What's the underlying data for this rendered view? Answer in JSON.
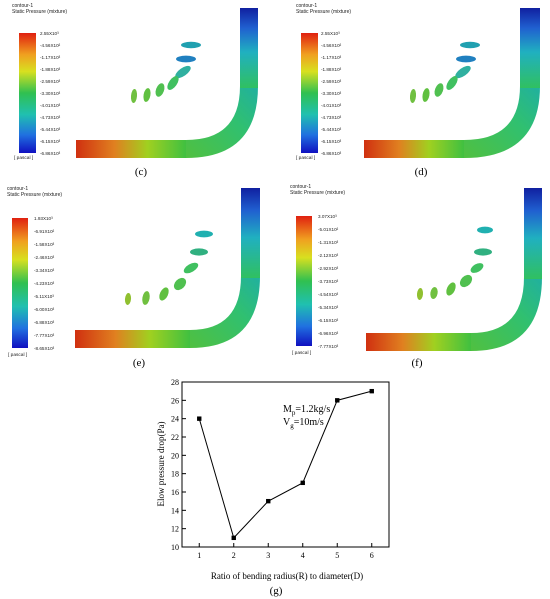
{
  "panels": {
    "c": {
      "title": "contour-1",
      "subtitle": "Static Pressure (mixture)",
      "unit": "[ pascal ]",
      "caption": "(c)",
      "ticks": [
        "2.55X10³",
        "-4.56X10²",
        "-1.17X10³",
        "-1.88X10³",
        "-2.59X10³",
        "-3.30X10³",
        "-4.01X10³",
        "-4.73X10³",
        "-5.44X10³",
        "-6.15X10³",
        "-6.86X10³"
      ]
    },
    "d": {
      "title": "contour-1",
      "subtitle": "Static Pressure (mixture)",
      "unit": "[ pascal ]",
      "caption": "(d)",
      "ticks": [
        "2.55X10³",
        "-4.56X10²",
        "-1.17X10³",
        "-1.88X10³",
        "-2.59X10³",
        "-3.30X10³",
        "-4.01X10³",
        "-4.73X10³",
        "-5.44X10³",
        "-6.15X10³",
        "-6.86X10³"
      ]
    },
    "e": {
      "title": "contour-1",
      "subtitle": "Static Pressure (mixture)",
      "unit": "[ pascal ]",
      "caption": "(e)",
      "ticks": [
        "1.93X10³",
        "-6.91X10²",
        "-1.58X10³",
        "-2.46X10³",
        "-3.34X10³",
        "-4.23X10³",
        "-5.11X10³",
        "-6.00X10³",
        "-6.88X10³",
        "-7.77X10³",
        "-8.65X10³"
      ]
    },
    "f": {
      "title": "contour-1",
      "subtitle": "Static Pressure (mixture)",
      "unit": "[ pascal ]",
      "caption": "(f)",
      "ticks": [
        "3.07X10³",
        "-5.01X10²",
        "-1.31X10³",
        "-2.12X10³",
        "-2.92X10³",
        "-3.73X10³",
        "-4.54X10³",
        "-5.34X10³",
        "-6.15X10³",
        "-6.96X10³",
        "-7.77X10³"
      ]
    }
  },
  "graph_caption": "(g)",
  "chart_data": {
    "type": "line",
    "x": [
      1,
      2,
      3,
      4,
      5,
      6
    ],
    "values": [
      24,
      11,
      15,
      17,
      26,
      27
    ],
    "xlabel": "Ratio of bending radius(R) to diameter(D)",
    "ylabel": "Elow pressure drop(Pa)",
    "xlim": [
      0.5,
      6.5
    ],
    "ylim": [
      10,
      28
    ],
    "yticks": [
      10,
      12,
      14,
      16,
      18,
      20,
      22,
      24,
      26,
      28
    ],
    "xticks": [
      1,
      2,
      3,
      4,
      5,
      6
    ],
    "annotations": [
      "M",
      "p",
      "=1.2kg/s",
      "V",
      "g",
      "=10m/s"
    ],
    "marker": "square",
    "grid": false,
    "color": "#000000"
  }
}
